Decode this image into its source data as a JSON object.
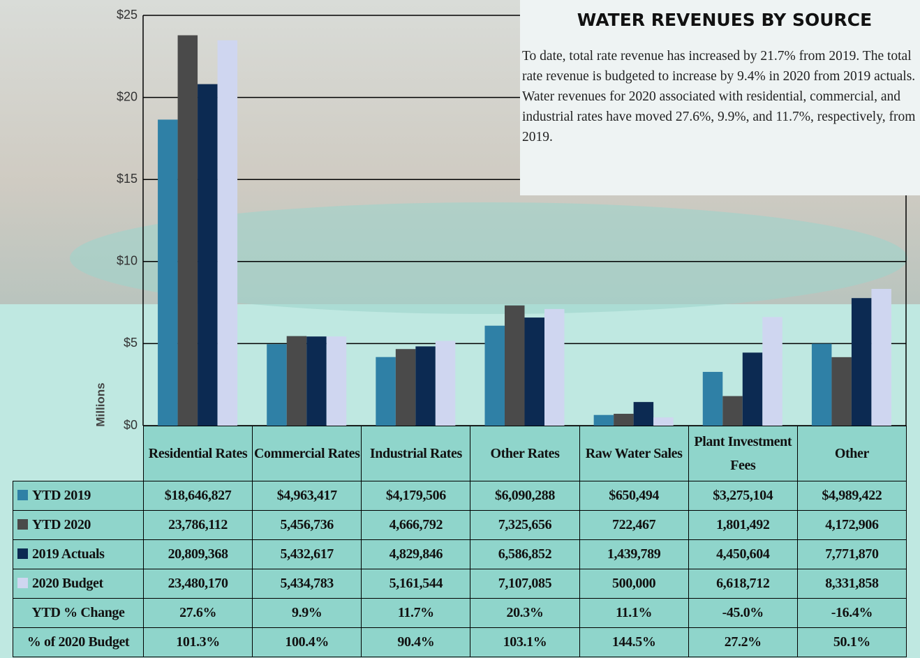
{
  "chart_data": {
    "type": "bar",
    "title": "WATER REVENUES BY SOURCE",
    "description": "To date, total rate revenue has increased by 21.7% from 2019. The total rate revenue is budgeted to increase by 9.4% in 2020 from 2019 actuals. Water revenues for 2020 associated with residential, commercial, and industrial rates have moved 27.6%, 9.9%, and 11.7%, respectively, from 2019.",
    "y_label": "Millions",
    "categories": [
      "Residential Rates",
      "Commercial Rates",
      "Industrial Rates",
      "Other Rates",
      "Raw Water Sales",
      "Plant Investment Fees",
      "Other"
    ],
    "series": [
      {
        "name": "YTD 2019",
        "color": "#2f80a6",
        "values": [
          18.646827,
          4.963417,
          4.179506,
          6.090288,
          0.650494,
          3.275104,
          4.989422
        ],
        "value_labels": [
          "$18,646,827",
          "$4,963,417",
          "$4,179,506",
          "$6,090,288",
          "$650,494",
          "$3,275,104",
          "$4,989,422"
        ]
      },
      {
        "name": "YTD 2020",
        "color": "#4a4a4a",
        "values": [
          23.786112,
          5.456736,
          4.666792,
          7.325656,
          0.722467,
          1.801492,
          4.172906
        ],
        "value_labels": [
          "23,786,112",
          "5,456,736",
          "4,666,792",
          "7,325,656",
          "722,467",
          "1,801,492",
          "4,172,906"
        ]
      },
      {
        "name": "2019 Actuals",
        "color": "#0c2a52",
        "values": [
          20.809368,
          5.432617,
          4.829846,
          6.586852,
          1.439789,
          4.450604,
          7.77187
        ],
        "value_labels": [
          "20,809,368",
          "5,432,617",
          "4,829,846",
          "6,586,852",
          "1,439,789",
          "4,450,604",
          "7,771,870"
        ]
      },
      {
        "name": "2020 Budget",
        "color": "#cfd6f0",
        "values": [
          23.48017,
          5.434783,
          5.161544,
          7.107085,
          0.5,
          6.618712,
          8.331858
        ],
        "value_labels": [
          "23,480,170",
          "5,434,783",
          "5,161,544",
          "7,107,085",
          "500,000",
          "6,618,712",
          "8,331,858"
        ]
      }
    ],
    "extra_rows": [
      {
        "label": "YTD % Change",
        "cells": [
          "27.6%",
          "9.9%",
          "11.7%",
          "20.3%",
          "11.1%",
          "-45.0%",
          "-16.4%"
        ]
      },
      {
        "label": "% of 2020 Budget",
        "cells": [
          "101.3%",
          "100.4%",
          "90.4%",
          "103.1%",
          "144.5%",
          "27.2%",
          "50.1%"
        ]
      }
    ],
    "ylim": [
      0,
      25
    ],
    "yticks": [
      {
        "value": 0,
        "label": "$0"
      },
      {
        "value": 5,
        "label": "$5"
      },
      {
        "value": 10,
        "label": "$10"
      },
      {
        "value": 15,
        "label": "$15"
      },
      {
        "value": 20,
        "label": "$20"
      },
      {
        "value": 25,
        "label": "$25"
      }
    ],
    "grid": true
  }
}
